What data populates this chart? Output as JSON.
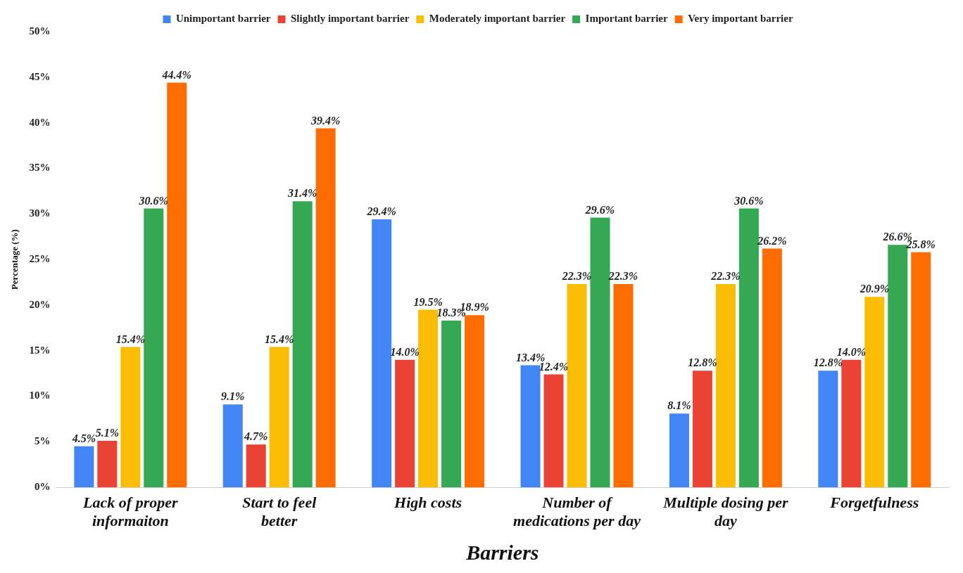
{
  "chart_data": {
    "type": "bar",
    "xlabel": "Barriers",
    "ylabel": "Percentage (%)",
    "categories": [
      "Lack of proper informaiton",
      "Start to feel better",
      "High costs",
      "Number of medications per day",
      "Multiple dosing per day",
      "Forgetfulness"
    ],
    "series": [
      {
        "name": "Unimportant barrier",
        "color": "#4285f4",
        "values": [
          4.5,
          9.1,
          29.4,
          13.4,
          8.1,
          12.8
        ],
        "value_labels": [
          "4.5%",
          "9.1%",
          "29.4%",
          "13.4%",
          "8.1%",
          "12.8%"
        ]
      },
      {
        "name": "Slightly important barrier",
        "color": "#ea4335",
        "values": [
          5.1,
          4.7,
          14.0,
          12.4,
          12.8,
          14.0
        ],
        "value_labels": [
          "5.1%",
          "4.7%",
          "14.0%",
          "12.4%",
          "12.8%",
          "14.0%"
        ]
      },
      {
        "name": "Moderately important barrier",
        "color": "#fbbc04",
        "values": [
          15.4,
          15.4,
          19.5,
          22.3,
          22.3,
          20.9
        ],
        "value_labels": [
          "15.4%",
          "15.4%",
          "19.5%",
          "22.3%",
          "22.3%",
          "20.9%"
        ]
      },
      {
        "name": "Important barrier",
        "color": "#34a853",
        "values": [
          30.6,
          31.4,
          18.3,
          29.6,
          30.6,
          26.6
        ],
        "value_labels": [
          "30.6%",
          "31.4%",
          "18.3%",
          "29.6%",
          "30.6%",
          "26.6%"
        ]
      },
      {
        "name": "Very important barrier",
        "color": "#ff6d01",
        "values": [
          44.4,
          39.4,
          18.9,
          22.3,
          26.2,
          25.8
        ],
        "value_labels": [
          "44.4%",
          "39.4%",
          "18.9%",
          "22.3%",
          "26.2%",
          "25.8%"
        ]
      }
    ],
    "ylim": [
      0,
      50
    ],
    "yticks": [
      {
        "value": 0,
        "label": "0%"
      },
      {
        "value": 5,
        "label": "5%"
      },
      {
        "value": 10,
        "label": "10%"
      },
      {
        "value": 15,
        "label": "15%"
      },
      {
        "value": 20,
        "label": "20%"
      },
      {
        "value": 25,
        "label": "25%"
      },
      {
        "value": 30,
        "label": "30%"
      },
      {
        "value": 35,
        "label": "35%"
      },
      {
        "value": 40,
        "label": "40%"
      },
      {
        "value": 45,
        "label": "45%"
      },
      {
        "value": 50,
        "label": "50%"
      }
    ],
    "grid": false,
    "legend": "top"
  }
}
